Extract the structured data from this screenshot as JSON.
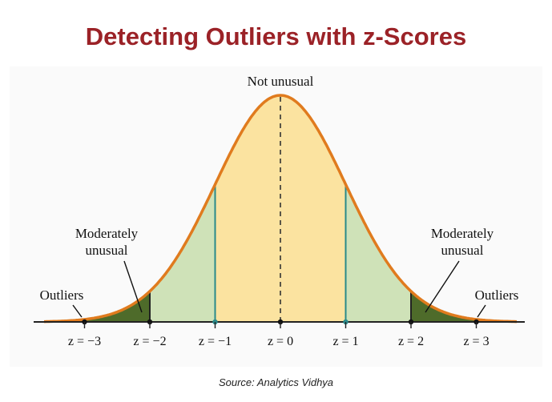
{
  "title": "Detecting Outliers with z-Scores",
  "source": "Source: Analytics Vidhya",
  "labels": {
    "center": "Not unusual",
    "moderate_line1": "Moderately",
    "moderate_line2": "unusual",
    "outliers": "Outliers"
  },
  "z_ticks": [
    {
      "value": -3,
      "label": "z = −3"
    },
    {
      "value": -2,
      "label": "z = −2"
    },
    {
      "value": -1,
      "label": "z = −1"
    },
    {
      "value": 0,
      "label": "z = 0"
    },
    {
      "value": 1,
      "label": "z = 1"
    },
    {
      "value": 2,
      "label": "z = 2"
    },
    {
      "value": 3,
      "label": "z = 3"
    }
  ],
  "colors": {
    "title": "#9b2227",
    "curve": "#e07b1e",
    "center_fill": "#fbe3a0",
    "moderate_fill": "#cfe2b8",
    "outlier_fill": "#4e6b2a",
    "sigma1_line": "#2a8a8a",
    "axis": "#222222",
    "background_panel": "#fafafa"
  }
}
